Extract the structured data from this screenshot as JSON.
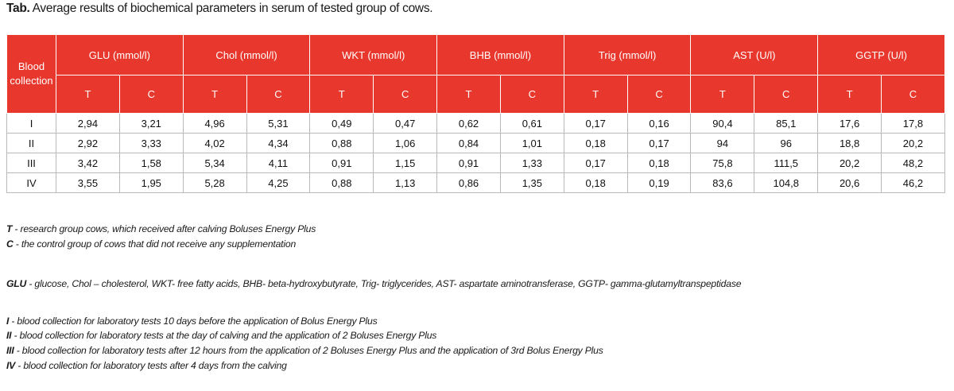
{
  "caption": {
    "prefix": "Tab.",
    "text": " Average results of biochemical parameters in serum of tested group of cows."
  },
  "table": {
    "row_header": "Blood collection",
    "groups": [
      "GLU (mmol/l)",
      "Chol (mmol/l)",
      "WKT (mmol/l)",
      "BHB (mmol/l)",
      "Trig (mmol/l)",
      "AST (U/l)",
      "GGTP (U/l)"
    ],
    "subcols": [
      "T",
      "C"
    ],
    "rows": [
      {
        "label": "I",
        "values": [
          "2,94",
          "3,21",
          "4,96",
          "5,31",
          "0,49",
          "0,47",
          "0,62",
          "0,61",
          "0,17",
          "0,16",
          "90,4",
          "85,1",
          "17,6",
          "17,8"
        ]
      },
      {
        "label": "II",
        "values": [
          "2,92",
          "3,33",
          "4,02",
          "4,34",
          "0,88",
          "1,06",
          "0,84",
          "1,01",
          "0,18",
          "0,17",
          "94",
          "96",
          "18,8",
          "20,2"
        ]
      },
      {
        "label": "III",
        "values": [
          "3,42",
          "1,58",
          "5,34",
          "4,11",
          "0,91",
          "1,15",
          "0,91",
          "1,33",
          "0,17",
          "0,18",
          "75,8",
          "111,5",
          "20,2",
          "48,2"
        ]
      },
      {
        "label": "IV",
        "values": [
          "3,55",
          "1,95",
          "5,28",
          "4,25",
          "0,88",
          "1,13",
          "0,86",
          "1,35",
          "0,18",
          "0,19",
          "83,6",
          "104,8",
          "20,6",
          "46,2"
        ]
      }
    ]
  },
  "notes": [
    {
      "key": "T",
      "text": " - research group cows, which received after calving Boluses Energy Plus"
    },
    {
      "key": "C",
      "text": " - the control group of cows that did not receive any supplementation"
    },
    {
      "key": "GLU",
      "text": " - glucose, Chol – cholesterol, WKT- free fatty acids, BHB- beta-hydroxybutyrate, Trig- triglycerides, AST- aspartate aminotransferase, GGTP- gamma-glutamyltranspeptidase"
    },
    {
      "key": "I",
      "text": " - blood collection for laboratory tests 10 days before the application of Bolus Energy Plus"
    },
    {
      "key": "II",
      "text": " - blood collection for laboratory tests at the day of calving and the application of 2 Boluses Energy Plus"
    },
    {
      "key": "III",
      "text": " - blood collection for laboratory tests after 12 hours from the application of 2 Boluses Energy Plus and the application of 3rd Bolus Energy Plus"
    },
    {
      "key": "IV",
      "text": " - blood collection for laboratory tests after 4 days from the calving"
    }
  ]
}
